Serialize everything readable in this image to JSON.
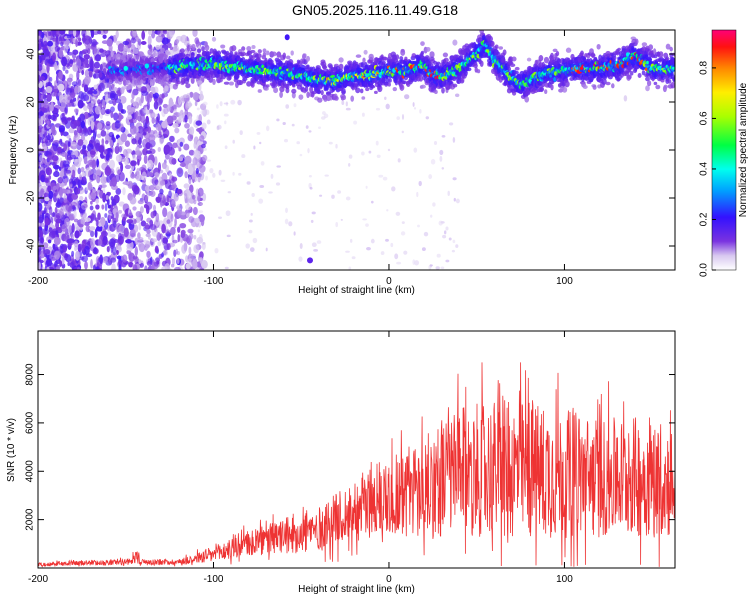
{
  "title": "GN05.2025.116.11.49.G18",
  "chart_data": [
    {
      "type": "heatmap",
      "xlabel": "Height of straight line (km)",
      "ylabel": "Frequency (Hz)",
      "xlim": [
        -200,
        163
      ],
      "ylim": [
        -50,
        50
      ],
      "xticks": [
        "-200",
        "-100",
        "0",
        "100"
      ],
      "yticks": [
        "40",
        "20",
        "0",
        "-20",
        "-40"
      ],
      "colorbar": {
        "label": "Normalized spectral amplitude",
        "range": [
          0,
          0.95
        ],
        "ticks": [
          "0.0",
          "0.2",
          "0.4",
          "0.6",
          "0.8"
        ]
      },
      "ridge": {
        "x": [
          -155,
          -140,
          -130,
          -115,
          -100,
          -90,
          -80,
          -70,
          -60,
          -50,
          -40,
          -30,
          -20,
          -10,
          0,
          10,
          20,
          25,
          30,
          40,
          50,
          55,
          60,
          70,
          75,
          80,
          90,
          100,
          110,
          120,
          130,
          140,
          150,
          163
        ],
        "frequency": [
          33,
          34,
          34,
          35,
          36,
          35,
          34,
          33,
          32,
          31,
          29,
          29,
          31,
          31,
          33,
          33,
          35,
          31,
          31,
          34,
          40,
          44,
          38,
          30,
          27,
          29,
          32,
          33,
          34,
          34,
          35,
          39,
          34,
          34
        ]
      }
    },
    {
      "type": "line",
      "xlabel": "Height of straight line (km)",
      "ylabel": "SNR (10 * v/v)",
      "xlim": [
        -200,
        163
      ],
      "ylim": [
        0,
        9800
      ],
      "xticks": [
        "-200",
        "-100",
        "0",
        "100"
      ],
      "yticks": [
        "8000",
        "6000",
        "4000",
        "2000"
      ],
      "color": "#ee3333",
      "envelope": {
        "x": [
          -200,
          -150,
          -120,
          -100,
          -80,
          -60,
          -40,
          -20,
          0,
          20,
          40,
          60,
          80,
          100,
          120,
          140,
          163
        ],
        "mean": [
          150,
          250,
          250,
          550,
          1000,
          1300,
          1600,
          2400,
          3000,
          3300,
          4000,
          4100,
          4000,
          3900,
          3700,
          3800,
          3600
        ],
        "spread": [
          80,
          120,
          120,
          350,
          550,
          750,
          900,
          1300,
          1700,
          2200,
          2600,
          2900,
          2900,
          2700,
          2500,
          2500,
          2400
        ]
      }
    }
  ]
}
